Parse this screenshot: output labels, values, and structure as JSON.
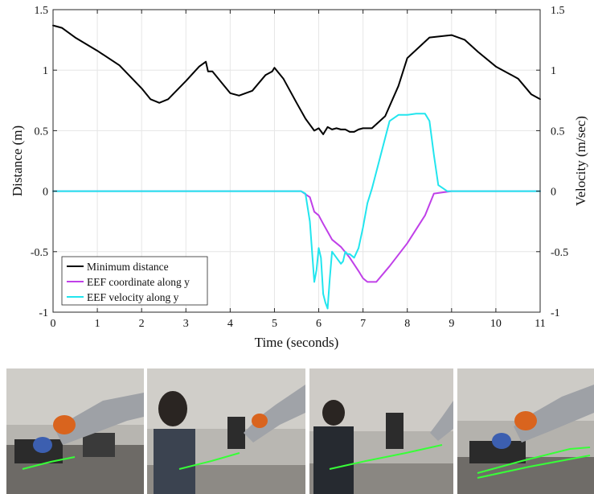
{
  "chart_data": {
    "type": "line",
    "xlabel": "Time (seconds)",
    "ylabel_left": "Distance (m)",
    "ylabel_right": "Velocity (m/sec)",
    "xlim": [
      0,
      11
    ],
    "ylim_left": [
      -1,
      1.5
    ],
    "ylim_right": [
      -1,
      1.5
    ],
    "xticks": [
      "0",
      "1",
      "2",
      "3",
      "4",
      "5",
      "6",
      "7",
      "8",
      "9",
      "10",
      "11"
    ],
    "yticks_left": [
      "-1",
      "-0.5",
      "0",
      "0.5",
      "1",
      "1.5"
    ],
    "yticks_right": [
      "-1",
      "-0.5",
      "0",
      "0.5",
      "1",
      "1.5"
    ],
    "grid": true,
    "legend_position": "bottom-left",
    "series": [
      {
        "name": "Minimum distance",
        "color": "#000000",
        "x": [
          0,
          0.2,
          0.5,
          1,
          1.5,
          2,
          2.2,
          2.4,
          2.6,
          3,
          3.3,
          3.45,
          3.5,
          3.6,
          3.8,
          4,
          4.2,
          4.5,
          4.8,
          4.95,
          5.0,
          5.2,
          5.5,
          5.7,
          5.9,
          6.0,
          6.1,
          6.2,
          6.3,
          6.4,
          6.5,
          6.6,
          6.7,
          6.8,
          6.9,
          7.0,
          7.2,
          7.5,
          7.8,
          8.0,
          8.5,
          9.0,
          9.3,
          9.6,
          10,
          10.5,
          10.8,
          11
        ],
        "y": [
          1.37,
          1.35,
          1.27,
          1.16,
          1.04,
          0.85,
          0.76,
          0.73,
          0.76,
          0.91,
          1.03,
          1.07,
          0.99,
          0.99,
          0.9,
          0.81,
          0.79,
          0.83,
          0.96,
          0.99,
          1.02,
          0.93,
          0.73,
          0.6,
          0.5,
          0.52,
          0.47,
          0.53,
          0.51,
          0.52,
          0.51,
          0.51,
          0.49,
          0.49,
          0.51,
          0.52,
          0.52,
          0.62,
          0.87,
          1.1,
          1.27,
          1.29,
          1.25,
          1.15,
          1.03,
          0.93,
          0.8,
          0.76
        ]
      },
      {
        "name": "EEF coordinate along y",
        "color": "#c040e8",
        "x": [
          0,
          5.6,
          5.8,
          5.9,
          6.0,
          6.1,
          6.3,
          6.5,
          6.7,
          6.9,
          7.0,
          7.1,
          7.3,
          7.6,
          8.0,
          8.4,
          8.6,
          9.0,
          11
        ],
        "y": [
          0,
          0,
          -0.05,
          -0.17,
          -0.2,
          -0.27,
          -0.4,
          -0.46,
          -0.55,
          -0.66,
          -0.72,
          -0.75,
          -0.75,
          -0.62,
          -0.43,
          -0.2,
          -0.02,
          0,
          0
        ]
      },
      {
        "name": "EEF velocity along y",
        "color": "#22e5ee",
        "x": [
          0,
          5.6,
          5.7,
          5.8,
          5.9,
          5.95,
          6.0,
          6.05,
          6.1,
          6.15,
          6.2,
          6.25,
          6.3,
          6.4,
          6.5,
          6.55,
          6.6,
          6.65,
          6.7,
          6.8,
          6.9,
          7.0,
          7.1,
          7.2,
          7.4,
          7.6,
          7.8,
          8.0,
          8.2,
          8.4,
          8.5,
          8.6,
          8.7,
          8.9,
          11
        ],
        "y": [
          0,
          0,
          -0.02,
          -0.25,
          -0.75,
          -0.65,
          -0.47,
          -0.55,
          -0.85,
          -0.92,
          -0.97,
          -0.72,
          -0.5,
          -0.55,
          -0.6,
          -0.58,
          -0.5,
          -0.52,
          -0.52,
          -0.55,
          -0.47,
          -0.3,
          -0.1,
          0.02,
          0.3,
          0.58,
          0.63,
          0.63,
          0.64,
          0.64,
          0.58,
          0.3,
          0.05,
          0,
          0
        ]
      }
    ]
  },
  "colors": {
    "grid": "#e6e6e6",
    "axis": "#262626"
  }
}
